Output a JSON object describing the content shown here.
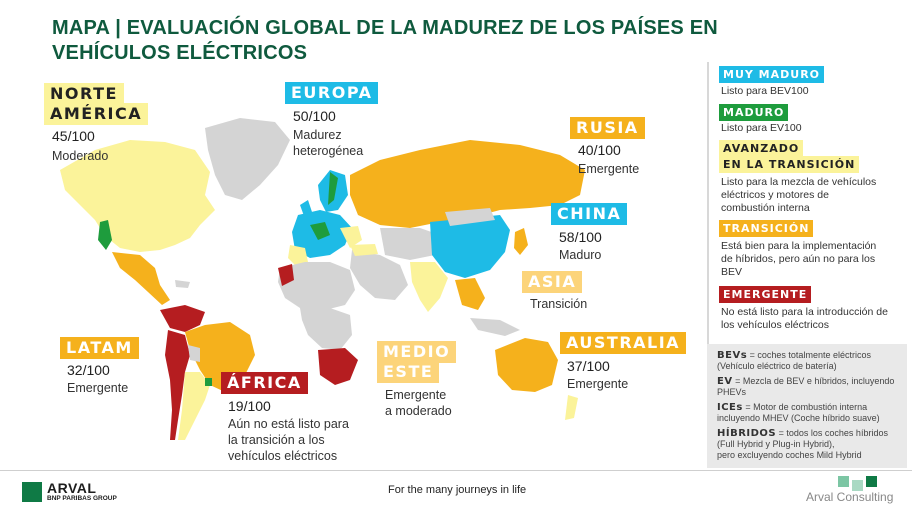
{
  "title": "MAPA | EVALUACIÓN GLOBAL DE LA MADUREZ DE LOS PAÍSES EN VEHÍCULOS ELÉCTRICOS",
  "regions": {
    "north_america": {
      "label_line1": "NORTE",
      "label_line2": "AMÉRICA",
      "score": "45/100",
      "desc": "Moderado"
    },
    "europe": {
      "label": "EUROPA",
      "score": "50/100",
      "desc_line1": "Madurez",
      "desc_line2": "heterogénea"
    },
    "russia": {
      "label": "RUSIA",
      "score": "40/100",
      "desc": "Emergente"
    },
    "china": {
      "label": "CHINA",
      "score": "58/100",
      "desc": "Maduro"
    },
    "asia": {
      "label": "ASIA",
      "desc": "Transición"
    },
    "latam": {
      "label": "LATAM",
      "score": "32/100",
      "desc": "Emergente"
    },
    "africa": {
      "label": "ÁFRICA",
      "score": "19/100",
      "desc_line1": "Aún no está listo para",
      "desc_line2": "la transición a los",
      "desc_line3": "vehículos eléctricos"
    },
    "middle_east": {
      "label_line1": "MEDIO",
      "label_line2": "ESTE",
      "desc_line1": "Emergente",
      "desc_line2": "a moderado"
    },
    "australia": {
      "label": "AUSTRALIA",
      "score": "37/100",
      "desc": "Emergente"
    }
  },
  "legend": {
    "very_mature": {
      "tag": "MUY MADURO",
      "text": "Listo para BEV100",
      "color": "#1ebbe6"
    },
    "mature": {
      "tag": "MADURO",
      "text": "Listo para EV100",
      "color": "#1e9c3d"
    },
    "advanced": {
      "tag_line1": "AVANZADO",
      "tag_line2": "EN LA TRANSICIÓN",
      "text_line1": "Listo para la mezcla de vehículos",
      "text_line2": "eléctricos y motores de",
      "text_line3": "combustión interna",
      "color": "#fbf39a"
    },
    "transition": {
      "tag": "TRANSICIÓN",
      "text_line1": "Está bien para la implementación",
      "text_line2": "de híbridos, pero aún no para los",
      "text_line3": "BEV",
      "color": "#f5b11c"
    },
    "emerging": {
      "tag": "EMERGENTE",
      "text_line1": "No está listo para la introducción de",
      "text_line2": "los vehículos eléctricos",
      "color": "#b51d20"
    }
  },
  "glossary": {
    "bev": {
      "term": "BEVs",
      "text_line1": " = coches totalmente eléctricos",
      "text_line2": "(Vehículo eléctrico de batería)"
    },
    "ev": {
      "term": "EV",
      "text_line1": " = Mezcla de BEV e híbridos, incluyendo",
      "text_line2": "PHEVs"
    },
    "ice": {
      "term": "ICEs",
      "text_line1": " = Motor de combustión interna",
      "text_line2": "incluyendo MHEV (Coche híbrido suave)"
    },
    "hybrid": {
      "term": "HÍBRIDOS",
      "text_line1": " = todos los coches híbridos",
      "text_line2": "(Full Hybrid y Plug-in Hybrid),",
      "text_line3": "pero excluyendo coches Mild Hybrid"
    }
  },
  "footer": {
    "logo_word": "ARVAL",
    "logo_sub": "BNP PARIBAS GROUP",
    "tagline": "For the many journeys in life",
    "consulting": "Arval Consulting"
  },
  "colors": {
    "very_mature": "#1ebbe6",
    "mature": "#1e9c3d",
    "advanced": "#fbf39a",
    "transition": "#f5b11c",
    "emerging": "#b51d20",
    "no_data": "#d4d4d4"
  }
}
